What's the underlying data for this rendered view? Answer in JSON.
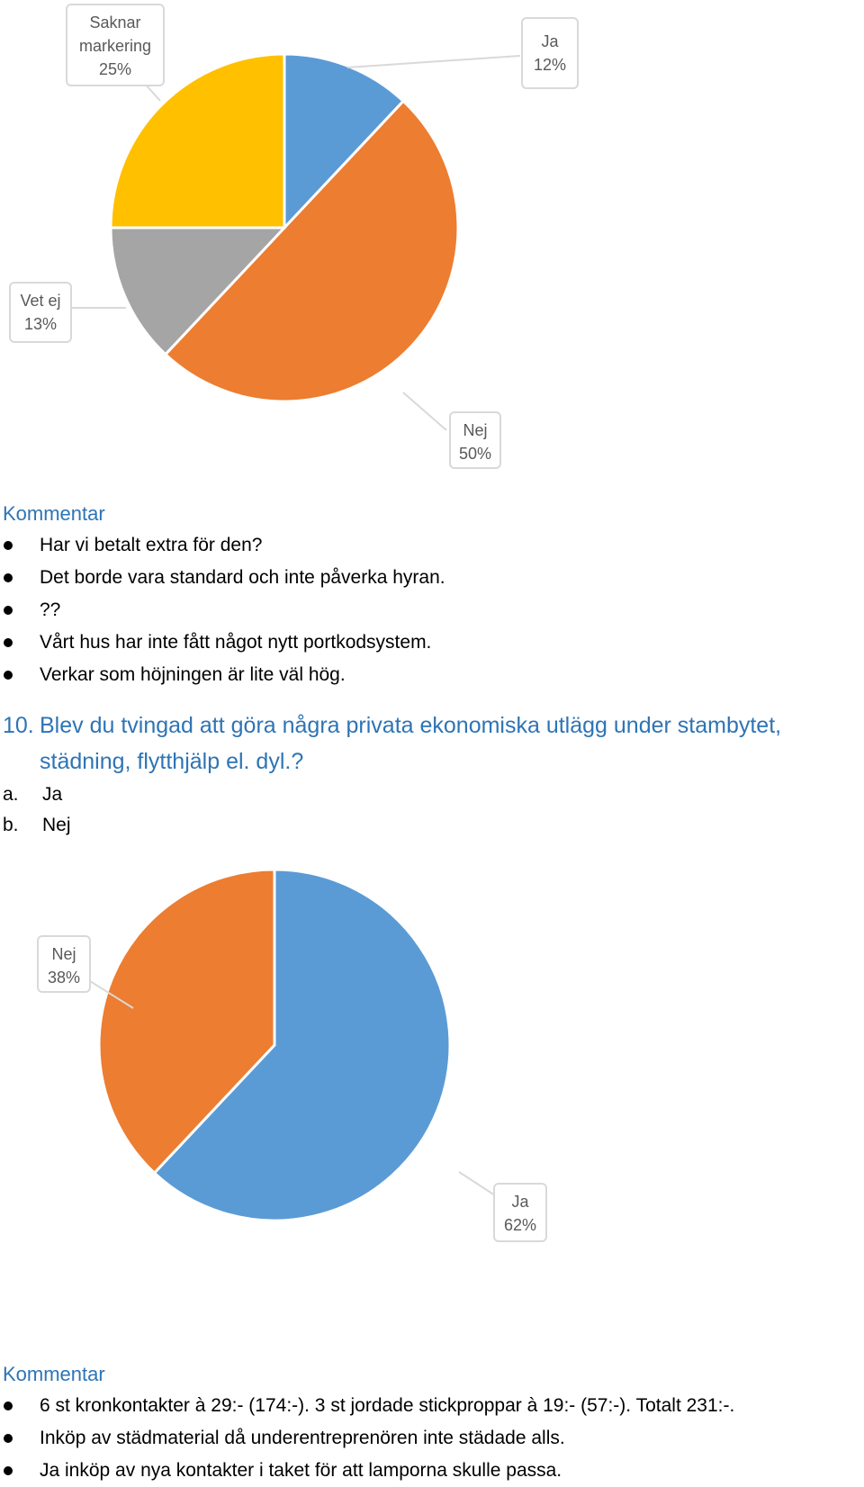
{
  "chart_data": [
    {
      "type": "pie",
      "slices": [
        {
          "label": "Ja",
          "value": 12,
          "display": "12%",
          "color": "#5b9bd5"
        },
        {
          "label": "Nej",
          "value": 50,
          "display": "50%",
          "color": "#ed7d31"
        },
        {
          "label": "Vet ej",
          "value": 13,
          "display": "13%",
          "color": "#a5a5a5"
        },
        {
          "label": "Saknar markering",
          "value": 25,
          "display": "25%",
          "color": "#ffc000"
        }
      ]
    },
    {
      "type": "pie",
      "slices": [
        {
          "label": "Ja",
          "value": 62,
          "display": "62%",
          "color": "#5b9bd5"
        },
        {
          "label": "Nej",
          "value": 38,
          "display": "38%",
          "color": "#ed7d31"
        }
      ]
    }
  ],
  "labels1": {
    "saknar_line1": "Saknar",
    "saknar_line2": "markering",
    "saknar_pct": "25%",
    "ja": "Ja",
    "ja_pct": "12%",
    "vetej": "Vet ej",
    "vetej_pct": "13%",
    "nej": "Nej",
    "nej_pct": "50%"
  },
  "comment1": {
    "heading": "Kommentar",
    "items": [
      "Har vi betalt extra för den?",
      "Det borde vara standard och inte påverka hyran.",
      "??",
      "Vårt hus har inte fått något nytt portkodsystem.",
      "Verkar som höjningen är lite väl hög."
    ]
  },
  "question10": {
    "number": "10.",
    "line1": "Blev du tvingad att göra några privata ekonomiska utlägg under stambytet,",
    "line2": "städning, flytthjälp el. dyl.?",
    "options": [
      {
        "letter": "a.",
        "text": "Ja"
      },
      {
        "letter": "b.",
        "text": "Nej"
      }
    ]
  },
  "labels2": {
    "nej": "Nej",
    "nej_pct": "38%",
    "ja": "Ja",
    "ja_pct": "62%"
  },
  "comment2": {
    "heading": "Kommentar",
    "items": [
      "6 st kronkontakter à 29:- (174:-). 3 st jordade stickproppar à 19:- (57:-). Totalt 231:-.",
      "Inköp av städmaterial då underentreprenören inte städade alls.",
      "Ja inköp av nya kontakter i taket för att lamporna skulle passa."
    ]
  }
}
